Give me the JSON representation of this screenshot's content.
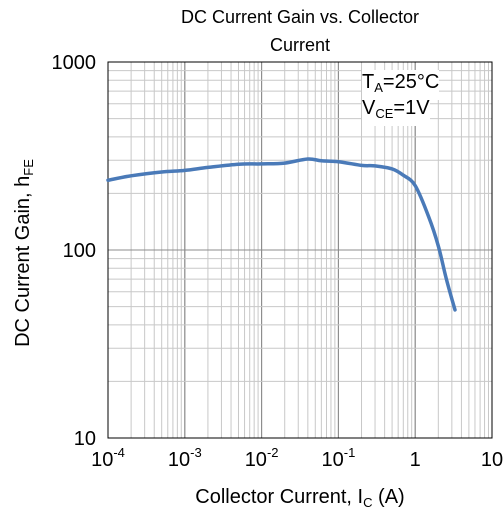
{
  "chart_data": {
    "type": "line",
    "title_line1": "DC Current Gain vs. Collector",
    "title_line2": "Current",
    "xlabel_main": "Collector Current, I",
    "xlabel_sub": "C",
    "xlabel_unit": " (A)",
    "ylabel_main": "DC Current Gain, h",
    "ylabel_sub": "FE",
    "annotation": {
      "ta_main": "T",
      "ta_sub": "A",
      "ta_value": "=25°C",
      "vce_main": "V",
      "vce_sub": "CE",
      "vce_value": "=1V"
    },
    "x_scale": "log",
    "y_scale": "log",
    "xlim": [
      0.0001,
      10
    ],
    "ylim": [
      10,
      1000
    ],
    "x_ticks": [
      {
        "value": 0.0001,
        "base": "10",
        "exp": "-4"
      },
      {
        "value": 0.001,
        "base": "10",
        "exp": "-3"
      },
      {
        "value": 0.01,
        "base": "10",
        "exp": "-2"
      },
      {
        "value": 0.1,
        "base": "10",
        "exp": "-1"
      },
      {
        "value": 1,
        "base": "1",
        "exp": ""
      },
      {
        "value": 10,
        "base": "10",
        "exp": ""
      }
    ],
    "y_ticks": [
      {
        "value": 10,
        "label": "10"
      },
      {
        "value": 100,
        "label": "100"
      },
      {
        "value": 1000,
        "label": "1000"
      }
    ],
    "grid": true,
    "series": [
      {
        "color": "#4a7ab8",
        "points": [
          [
            0.0001,
            235
          ],
          [
            0.0002,
            248
          ],
          [
            0.0005,
            260
          ],
          [
            0.001,
            265
          ],
          [
            0.002,
            275
          ],
          [
            0.005,
            286
          ],
          [
            0.01,
            287
          ],
          [
            0.02,
            290
          ],
          [
            0.04,
            305
          ],
          [
            0.06,
            298
          ],
          [
            0.1,
            295
          ],
          [
            0.2,
            282
          ],
          [
            0.3,
            280
          ],
          [
            0.5,
            270
          ],
          [
            0.7,
            250
          ],
          [
            1,
            220
          ],
          [
            1.5,
            150
          ],
          [
            2,
            105
          ],
          [
            2.5,
            72
          ],
          [
            3,
            55
          ],
          [
            3.3,
            48
          ]
        ]
      }
    ]
  }
}
